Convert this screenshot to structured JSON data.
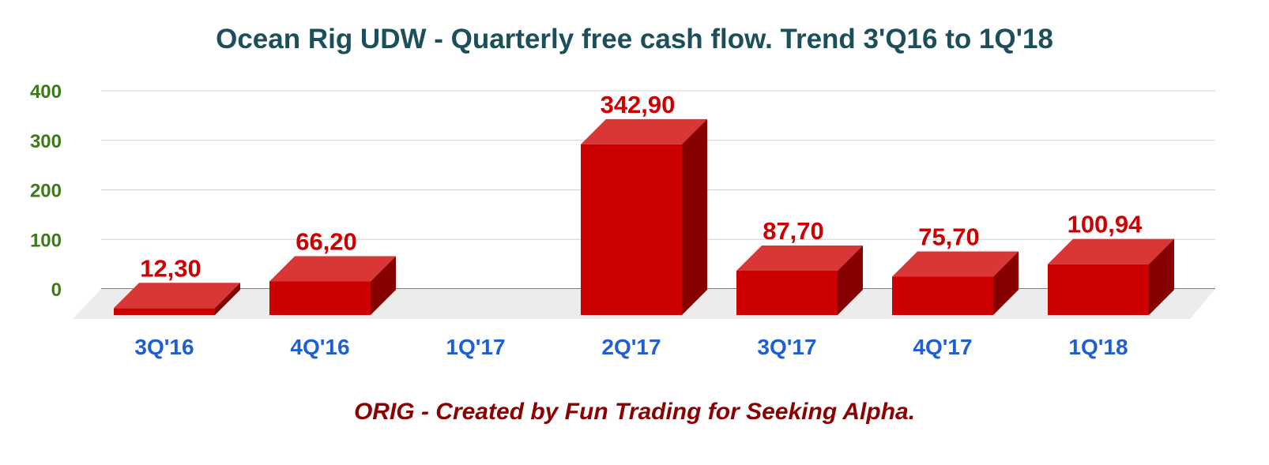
{
  "colors": {
    "title": "#1b4f5a",
    "ytick": "#3c7a1a",
    "xtick": "#1f5fcf",
    "data_label": "#cc0000",
    "footer": "#8b0000",
    "bar_front": "#cc0000",
    "bar_top": "#d93636",
    "bar_side": "#860000",
    "floor": "#ececec",
    "grid": "#d0d0d0",
    "baseline": "#333333"
  },
  "footer": {
    "text": "ORIG - Created by Fun Trading for Seeking Alpha."
  },
  "chart_data": {
    "type": "bar",
    "title": "Ocean Rig UDW - Quarterly free cash flow. Trend 3'Q16 to 1Q'18",
    "xlabel": "",
    "ylabel": "",
    "ylim": [
      0,
      400
    ],
    "yticks": [
      "400",
      "300",
      "200",
      "100",
      "0"
    ],
    "grid": true,
    "legend": "none",
    "categories": [
      "3Q'16",
      "4Q'16",
      "1Q'17",
      "2Q'17",
      "3Q'17",
      "4Q'17",
      "1Q'18"
    ],
    "values": [
      12.3,
      66.2,
      0,
      342.9,
      87.7,
      75.7,
      100.94
    ],
    "data_labels": [
      "12,30",
      "66,20",
      "",
      "342,90",
      "87,70",
      "75,70",
      "100,94"
    ]
  }
}
